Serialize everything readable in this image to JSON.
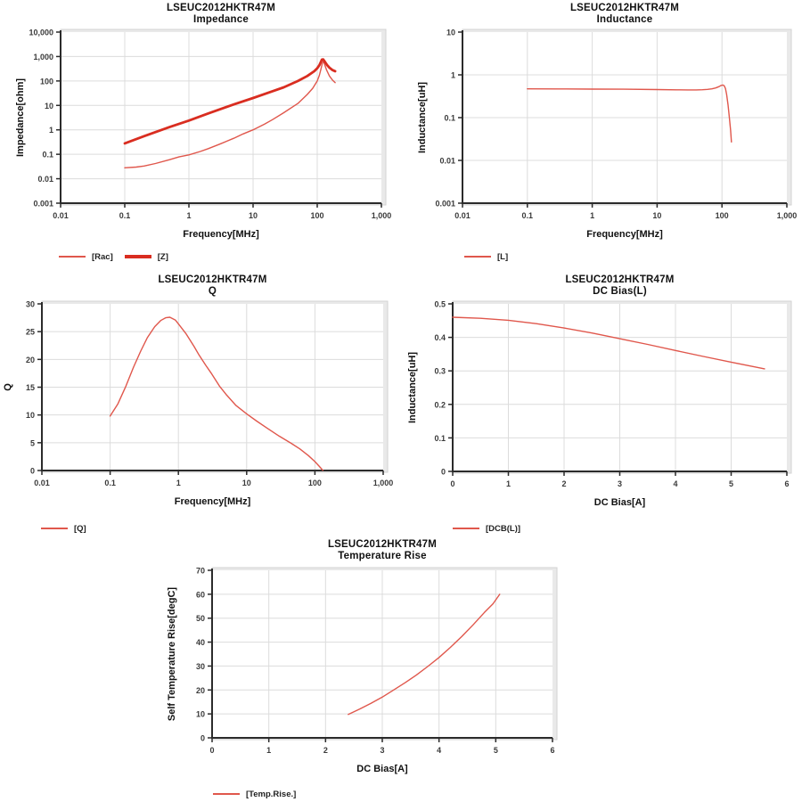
{
  "part_number": "LSEUC2012HKTR47M",
  "colors": {
    "series_thin_red": "#e0574c",
    "series_thick_red": "#d92d20",
    "grid": "#dcdcdc",
    "axis": "#2b2b2b",
    "panel_fill": "#e9e9e9",
    "panel_border": "#d2d2d2",
    "tick_text": "#3a3a3a",
    "title_text": "#111111",
    "plot_bg": "#ffffff"
  },
  "chart_data": [
    {
      "id": "impedance",
      "type": "line",
      "title_line1": "LSEUC2012HKTR47M",
      "title_line2": "Impedance",
      "xlabel": "Frequency[MHz]",
      "ylabel": "Impedance[ohm]",
      "xscale": "log",
      "yscale": "log",
      "xlim": [
        0.01,
        1000
      ],
      "ylim": [
        0.001,
        10000
      ],
      "xticks": [
        0.01,
        0.1,
        1,
        10,
        100,
        1000
      ],
      "xtick_labels": [
        "0.01",
        "0.1",
        "1",
        "10",
        "100",
        "1,000"
      ],
      "yticks": [
        10000,
        1000,
        100,
        10,
        1,
        0.1,
        0.01,
        0.001
      ],
      "ytick_labels": [
        "10,000",
        "1,000",
        "100",
        "10",
        "1",
        "0.1",
        "0.01",
        "0.001"
      ],
      "grid": true,
      "legend_position": "bottom-left",
      "series": [
        {
          "name": "[Rac]",
          "weight": "thin",
          "color": "#e0574c",
          "points": [
            [
              0.1,
              0.028
            ],
            [
              0.15,
              0.03
            ],
            [
              0.2,
              0.033
            ],
            [
              0.3,
              0.042
            ],
            [
              0.5,
              0.06
            ],
            [
              0.7,
              0.078
            ],
            [
              1,
              0.095
            ],
            [
              1.5,
              0.13
            ],
            [
              2,
              0.17
            ],
            [
              3,
              0.26
            ],
            [
              5,
              0.45
            ],
            [
              7,
              0.68
            ],
            [
              10,
              1.0
            ],
            [
              15,
              1.7
            ],
            [
              20,
              2.6
            ],
            [
              30,
              5
            ],
            [
              50,
              12
            ],
            [
              70,
              28
            ],
            [
              85,
              50
            ],
            [
              100,
              100
            ],
            [
              108,
              170
            ],
            [
              114,
              300
            ],
            [
              120,
              520
            ],
            [
              125,
              640
            ],
            [
              132,
              430
            ],
            [
              140,
              280
            ],
            [
              155,
              160
            ],
            [
              172,
              110
            ],
            [
              190,
              85
            ]
          ]
        },
        {
          "name": "[Z]",
          "weight": "thick",
          "color": "#d92d20",
          "points": [
            [
              0.1,
              0.28
            ],
            [
              0.2,
              0.55
            ],
            [
              0.5,
              1.3
            ],
            [
              1,
              2.4
            ],
            [
              2,
              4.7
            ],
            [
              5,
              11
            ],
            [
              10,
              20
            ],
            [
              20,
              38
            ],
            [
              30,
              55
            ],
            [
              50,
              100
            ],
            [
              70,
              160
            ],
            [
              90,
              250
            ],
            [
              100,
              330
            ],
            [
              108,
              440
            ],
            [
              114,
              600
            ],
            [
              118,
              750
            ],
            [
              124,
              760
            ],
            [
              132,
              600
            ],
            [
              142,
              450
            ],
            [
              155,
              350
            ],
            [
              172,
              280
            ],
            [
              190,
              250
            ]
          ]
        }
      ]
    },
    {
      "id": "inductance",
      "type": "line",
      "title_line1": "LSEUC2012HKTR47M",
      "title_line2": "Inductance",
      "xlabel": "Frequency[MHz]",
      "ylabel": "Inductance[uH]",
      "xscale": "log",
      "yscale": "log",
      "xlim": [
        0.01,
        1000
      ],
      "ylim": [
        0.001,
        10
      ],
      "xticks": [
        0.01,
        0.1,
        1,
        10,
        100,
        1000
      ],
      "xtick_labels": [
        "0.01",
        "0.1",
        "1",
        "10",
        "100",
        "1,000"
      ],
      "yticks": [
        10,
        1,
        0.1,
        0.01,
        0.001
      ],
      "ytick_labels": [
        "10",
        "1",
        "0.1",
        "0.01",
        "0.001"
      ],
      "grid": true,
      "legend_position": "bottom-left",
      "series": [
        {
          "name": "[L]",
          "weight": "thin",
          "color": "#e0574c",
          "points": [
            [
              0.1,
              0.47
            ],
            [
              0.3,
              0.468
            ],
            [
              1,
              0.465
            ],
            [
              3,
              0.461
            ],
            [
              10,
              0.453
            ],
            [
              20,
              0.447
            ],
            [
              30,
              0.444
            ],
            [
              40,
              0.444
            ],
            [
              50,
              0.449
            ],
            [
              60,
              0.458
            ],
            [
              70,
              0.472
            ],
            [
              80,
              0.495
            ],
            [
              90,
              0.53
            ],
            [
              97,
              0.565
            ],
            [
              103,
              0.58
            ],
            [
              108,
              0.56
            ],
            [
              113,
              0.48
            ],
            [
              118,
              0.35
            ],
            [
              124,
              0.2
            ],
            [
              130,
              0.1
            ],
            [
              136,
              0.05
            ],
            [
              140,
              0.027
            ]
          ]
        }
      ]
    },
    {
      "id": "q-factor",
      "type": "line",
      "title_line1": "LSEUC2012HKTR47M",
      "title_line2": "Q",
      "xlabel": "Frequency[MHz]",
      "ylabel": "Q",
      "xscale": "log",
      "yscale": "linear",
      "xlim": [
        0.01,
        1000
      ],
      "ylim": [
        0,
        30
      ],
      "xticks": [
        0.01,
        0.1,
        1,
        10,
        100,
        1000
      ],
      "xtick_labels": [
        "0.01",
        "0.1",
        "1",
        "10",
        "100",
        "1,000"
      ],
      "yticks": [
        30,
        25,
        20,
        15,
        10,
        5,
        0
      ],
      "ytick_labels": [
        "30",
        "25",
        "20",
        "15",
        "10",
        "5",
        "0"
      ],
      "grid": true,
      "legend_position": "bottom-left",
      "series": [
        {
          "name": "[Q]",
          "weight": "thin",
          "color": "#e0574c",
          "points": [
            [
              0.1,
              9.8
            ],
            [
              0.13,
              12
            ],
            [
              0.17,
              15.2
            ],
            [
              0.22,
              18.6
            ],
            [
              0.28,
              21.5
            ],
            [
              0.35,
              23.9
            ],
            [
              0.45,
              25.9
            ],
            [
              0.55,
              27
            ],
            [
              0.65,
              27.5
            ],
            [
              0.75,
              27.6
            ],
            [
              0.9,
              27.1
            ],
            [
              1,
              26.4
            ],
            [
              1.3,
              24.6
            ],
            [
              1.7,
              22.3
            ],
            [
              2,
              20.8
            ],
            [
              2.5,
              19
            ],
            [
              3,
              17.6
            ],
            [
              4,
              15.2
            ],
            [
              5,
              13.7
            ],
            [
              7,
              11.7
            ],
            [
              10,
              10.2
            ],
            [
              14,
              8.9
            ],
            [
              20,
              7.6
            ],
            [
              30,
              6.2
            ],
            [
              45,
              4.9
            ],
            [
              60,
              3.9
            ],
            [
              80,
              2.7
            ],
            [
              100,
              1.6
            ],
            [
              115,
              0.8
            ],
            [
              125,
              0.3
            ],
            [
              131,
              0.05
            ]
          ]
        }
      ]
    },
    {
      "id": "dc-bias-l",
      "type": "line",
      "title_line1": "LSEUC2012HKTR47M",
      "title_line2": "DC Bias(L)",
      "xlabel": "DC Bias[A]",
      "ylabel": "Inductance[uH]",
      "xscale": "linear",
      "yscale": "linear",
      "xlim": [
        0,
        6
      ],
      "ylim": [
        0,
        0.5
      ],
      "xticks": [
        0,
        1,
        2,
        3,
        4,
        5,
        6
      ],
      "xtick_labels": [
        "0",
        "1",
        "2",
        "3",
        "4",
        "5",
        "6"
      ],
      "yticks": [
        0.5,
        0.4,
        0.3,
        0.2,
        0.1,
        0
      ],
      "ytick_labels": [
        "0.5",
        "0.4",
        "0.3",
        "0.2",
        "0.1",
        "0"
      ],
      "grid": true,
      "legend_position": "bottom-left",
      "series": [
        {
          "name": "[DCB(L)]",
          "weight": "thin",
          "color": "#e0574c",
          "points": [
            [
              0,
              0.46
            ],
            [
              0.5,
              0.457
            ],
            [
              1,
              0.451
            ],
            [
              1.5,
              0.441
            ],
            [
              2,
              0.428
            ],
            [
              2.5,
              0.413
            ],
            [
              3,
              0.396
            ],
            [
              3.5,
              0.379
            ],
            [
              4,
              0.361
            ],
            [
              4.5,
              0.343
            ],
            [
              5,
              0.326
            ],
            [
              5.3,
              0.316
            ],
            [
              5.6,
              0.306
            ]
          ]
        }
      ]
    },
    {
      "id": "temperature-rise",
      "type": "line",
      "title_line1": "LSEUC2012HKTR47M",
      "title_line2": "Temperature Rise",
      "xlabel": "DC Bias[A]",
      "ylabel": "Self Temperature Rise[degC]",
      "xscale": "linear",
      "yscale": "linear",
      "xlim": [
        0,
        6
      ],
      "ylim": [
        0,
        70
      ],
      "xticks": [
        0,
        1,
        2,
        3,
        4,
        5,
        6
      ],
      "xtick_labels": [
        "0",
        "1",
        "2",
        "3",
        "4",
        "5",
        "6"
      ],
      "yticks": [
        70,
        60,
        50,
        40,
        30,
        20,
        10,
        0
      ],
      "ytick_labels": [
        "70",
        "60",
        "50",
        "40",
        "30",
        "20",
        "10",
        "0"
      ],
      "grid": true,
      "legend_position": "bottom-left",
      "series": [
        {
          "name": "[Temp.Rise.]",
          "weight": "thin",
          "color": "#e0574c",
          "points": [
            [
              2.4,
              9.8
            ],
            [
              2.6,
              12
            ],
            [
              2.8,
              14.4
            ],
            [
              3,
              17
            ],
            [
              3.2,
              20
            ],
            [
              3.4,
              23
            ],
            [
              3.6,
              26.2
            ],
            [
              3.8,
              29.8
            ],
            [
              4,
              33.6
            ],
            [
              4.2,
              37.8
            ],
            [
              4.4,
              42.3
            ],
            [
              4.6,
              47.2
            ],
            [
              4.8,
              52.4
            ],
            [
              4.95,
              56
            ],
            [
              5.07,
              60
            ]
          ]
        }
      ]
    }
  ]
}
